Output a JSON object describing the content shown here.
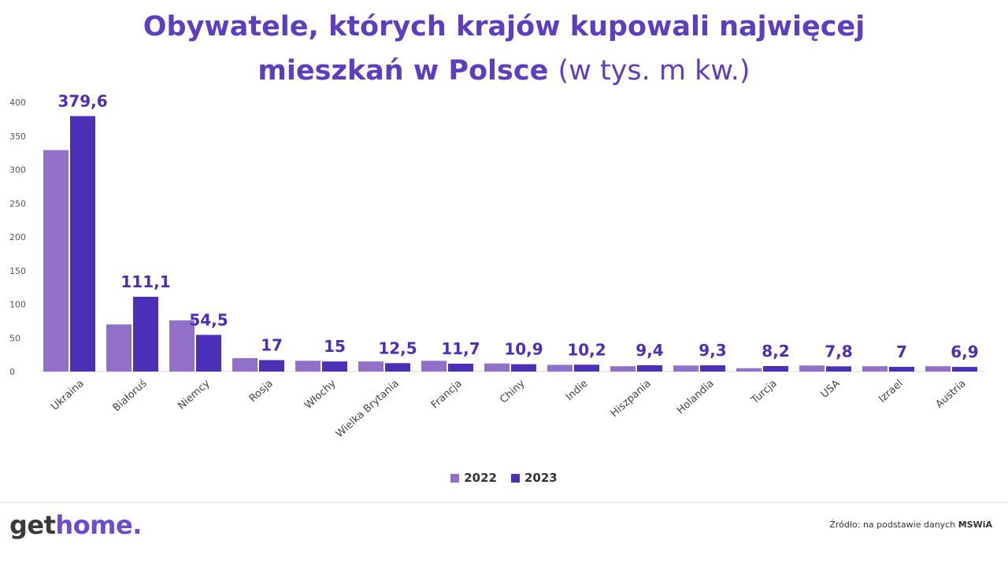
{
  "title": {
    "line1": "Obywatele, których krajów kupowali najwięcej",
    "line2": "mieszkań w Polsce",
    "subtitle": "(w tys. m kw.)"
  },
  "colors": {
    "s2022": "#9170c9",
    "s2023": "#4b2fb6",
    "title": "#5b3fbf"
  },
  "chart_data": {
    "type": "bar",
    "categories": [
      "Ukraina",
      "Białoruś",
      "Niemcy",
      "Rosja",
      "Włochy",
      "Wielka Brytania",
      "Francja",
      "Chiny",
      "Indie",
      "Hiszpania",
      "Holandia",
      "Turcja",
      "USA",
      "Izrael",
      "Austria"
    ],
    "series": [
      {
        "name": "2022",
        "values": [
          329,
          70,
          76,
          20,
          16,
          15,
          16,
          12,
          10,
          8,
          9,
          5,
          9,
          8,
          8
        ]
      },
      {
        "name": "2023",
        "values": [
          379.6,
          111.1,
          54.5,
          17,
          15,
          12.5,
          11.7,
          10.9,
          10.2,
          9.4,
          9.3,
          8.2,
          7.8,
          7,
          6.9
        ]
      }
    ],
    "data_labels": [
      "379,6",
      "111,1",
      "54,5",
      "17",
      "15",
      "12,5",
      "11,7",
      "10,9",
      "10,2",
      "9,4",
      "9,3",
      "8,2",
      "7,8",
      "7",
      "6,9"
    ],
    "ylim": [
      0,
      400
    ],
    "yticks": [
      0,
      50,
      100,
      150,
      200,
      250,
      300,
      350,
      400
    ],
    "legend_position": "bottom",
    "grid": false
  },
  "legend": {
    "items": [
      "2022",
      "2023"
    ]
  },
  "footer": {
    "logo_part1": "get",
    "logo_part2": "home.",
    "source_prefix": "Źródło: na podstawie danych",
    "source_bold": "MSWiA"
  }
}
